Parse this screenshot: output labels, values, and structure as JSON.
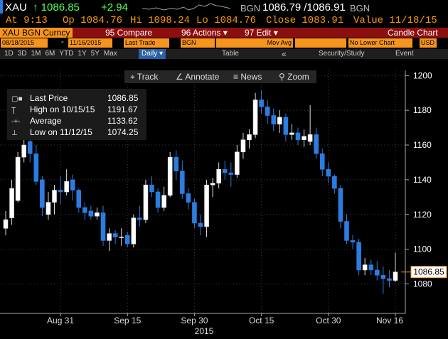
{
  "header": {
    "ticker": "XAU",
    "last": "↑ 1086.85",
    "change": "+2.94",
    "source": "BGN",
    "bid_ask": "1086.79 /1086.91",
    "source2": "BGN",
    "quote": [
      "At 9:13",
      "Op 1084.76",
      "Hi 1098.24",
      "Lo 1084.76",
      "Close 1083.91",
      "Value 11/18/15"
    ],
    "security": "XAU BGN Curncy",
    "compare": "95 Compare",
    "actions": "96 Actions ▾",
    "edit": "97 Edit ▾",
    "chart_type": "Candle Chart",
    "start": "08/18/2015",
    "dash": "-",
    "end": "11/16/2015",
    "field": "Last Trade",
    "field_source": "BGN",
    "study": "Mov Avg",
    "lower": "No Lower Chart",
    "currency": "USD",
    "periods": [
      "1D",
      "3D",
      "1M",
      "6M",
      "YTD",
      "1Y",
      "5Y",
      "Max"
    ],
    "frequency": "Daily ▾",
    "table": "Table",
    "back": "«",
    "security_study": "Security/Study",
    "event": "Event",
    "tools": [
      "⌖ Track",
      "∠ Annotate",
      "≡ News",
      "⚲ Zoom"
    ]
  },
  "chart_data": {
    "type": "candlestick",
    "up_color": "#ffffff",
    "down_color": "#2b7de0",
    "grid": true,
    "x": [
      "2015-08-18",
      "2015-08-19",
      "2015-08-20",
      "2015-08-21",
      "2015-08-24",
      "2015-08-25",
      "2015-08-26",
      "2015-08-27",
      "2015-08-28",
      "2015-08-31",
      "2015-09-01",
      "2015-09-02",
      "2015-09-03",
      "2015-09-04",
      "2015-09-07",
      "2015-09-08",
      "2015-09-09",
      "2015-09-10",
      "2015-09-11",
      "2015-09-14",
      "2015-09-15",
      "2015-09-16",
      "2015-09-17",
      "2015-09-18",
      "2015-09-21",
      "2015-09-22",
      "2015-09-23",
      "2015-09-24",
      "2015-09-25",
      "2015-09-28",
      "2015-09-29",
      "2015-09-30",
      "2015-10-01",
      "2015-10-02",
      "2015-10-05",
      "2015-10-06",
      "2015-10-07",
      "2015-10-08",
      "2015-10-09",
      "2015-10-12",
      "2015-10-13",
      "2015-10-14",
      "2015-10-15",
      "2015-10-16",
      "2015-10-19",
      "2015-10-20",
      "2015-10-21",
      "2015-10-22",
      "2015-10-23",
      "2015-10-26",
      "2015-10-27",
      "2015-10-28",
      "2015-10-29",
      "2015-10-30",
      "2015-11-02",
      "2015-11-03",
      "2015-11-04",
      "2015-11-05",
      "2015-11-06",
      "2015-11-09",
      "2015-11-10",
      "2015-11-11",
      "2015-11-12",
      "2015-11-13",
      "2015-11-16"
    ],
    "open": [
      1112,
      1118,
      1128,
      1153,
      1162,
      1155,
      1140,
      1120,
      1127,
      1134,
      1133,
      1140,
      1134,
      1124,
      1122,
      1119,
      1121,
      1105,
      1109,
      1107,
      1108,
      1103,
      1118,
      1117,
      1137,
      1133,
      1124,
      1131,
      1153,
      1145,
      1132,
      1127,
      1115,
      1113,
      1137,
      1138,
      1146,
      1144,
      1143,
      1156,
      1163,
      1166,
      1186,
      1182,
      1177,
      1172,
      1176,
      1166,
      1167,
      1163,
      1162,
      1166,
      1155,
      1146,
      1142,
      1135,
      1116,
      1105,
      1104,
      1088,
      1091,
      1088,
      1085,
      1083,
      1082
    ],
    "high": [
      1122,
      1140,
      1156,
      1170,
      1168,
      1160,
      1142,
      1133,
      1137,
      1142,
      1146,
      1143,
      1135,
      1127,
      1125,
      1124,
      1125,
      1112,
      1111,
      1112,
      1110,
      1120,
      1125,
      1140,
      1142,
      1135,
      1136,
      1156,
      1157,
      1151,
      1135,
      1129,
      1120,
      1140,
      1141,
      1150,
      1151,
      1150,
      1160,
      1167,
      1169,
      1190,
      1191.67,
      1186,
      1181,
      1180,
      1178,
      1172,
      1170,
      1169,
      1183,
      1170,
      1158,
      1150,
      1143,
      1137,
      1120,
      1108,
      1106,
      1095,
      1094,
      1093,
      1090,
      1088,
      1098
    ],
    "low": [
      1108,
      1114,
      1127,
      1150,
      1150,
      1137,
      1119,
      1117,
      1120,
      1126,
      1131,
      1128,
      1121,
      1117,
      1117,
      1117,
      1102,
      1099,
      1103,
      1102,
      1101,
      1101,
      1113,
      1115,
      1130,
      1121,
      1122,
      1130,
      1140,
      1129,
      1123,
      1112,
      1108,
      1107,
      1130,
      1135,
      1140,
      1136,
      1141,
      1152,
      1158,
      1164,
      1178,
      1172,
      1168,
      1167,
      1162,
      1163,
      1160,
      1159,
      1160,
      1152,
      1142,
      1138,
      1132,
      1112,
      1103,
      1100,
      1085,
      1085,
      1085,
      1082,
      1074.25,
      1078,
      1081
    ],
    "close": [
      1117,
      1135,
      1153,
      1160,
      1155,
      1139,
      1124,
      1127,
      1134,
      1133,
      1139,
      1134,
      1124,
      1121,
      1119,
      1121,
      1105,
      1109,
      1107,
      1107,
      1103,
      1118,
      1117,
      1137,
      1133,
      1124,
      1131,
      1153,
      1145,
      1132,
      1127,
      1115,
      1113,
      1137,
      1138,
      1146,
      1144,
      1143,
      1156,
      1163,
      1166,
      1186,
      1182,
      1177,
      1172,
      1176,
      1166,
      1167,
      1163,
      1165,
      1166,
      1155,
      1146,
      1142,
      1135,
      1116,
      1105,
      1104,
      1088,
      1091,
      1088,
      1085,
      1083,
      1082,
      1086.85
    ],
    "ylim": [
      1063,
      1203
    ],
    "yticks": [
      1080,
      1100,
      1120,
      1140,
      1160,
      1180,
      1200
    ],
    "xticks": [
      {
        "value": "2015-08-31",
        "label": "Aug 31"
      },
      {
        "value": "2015-09-15",
        "label": "Sep 15"
      },
      {
        "value": "2015-09-30",
        "label": "Sep 30"
      },
      {
        "value": "2015-10-15",
        "label": "Oct 15"
      },
      {
        "value": "2015-10-30",
        "label": "Oct 30"
      },
      {
        "value": "2015-11-16",
        "label": "Nov 16"
      }
    ],
    "xlabel": "2015",
    "legend": [
      {
        "name": "Last Price",
        "value": 1086.85
      },
      {
        "name": "High on 10/15/15",
        "value": 1191.67
      },
      {
        "name": "Average",
        "value": 1133.62
      },
      {
        "name": "Low on 11/12/15",
        "value": 1074.25
      }
    ]
  }
}
